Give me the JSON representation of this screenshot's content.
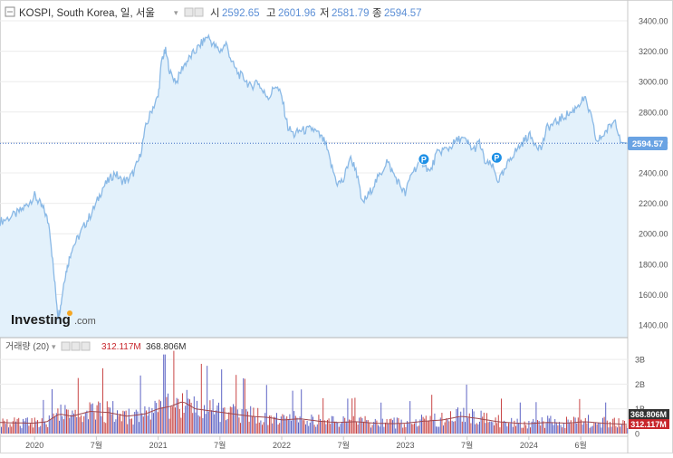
{
  "header": {
    "collapse_icon": "minus-square-icon",
    "symbol": "KOSPI, South Korea, 일, 서울",
    "open_label": "시",
    "open_value": "2592.65",
    "high_label": "고",
    "high_value": "2601.96",
    "low_label": "저",
    "low_value": "2581.79",
    "close_label": "종",
    "close_value": "2594.57"
  },
  "logo": {
    "brand": "Investing",
    "suffix": ".com"
  },
  "volume_header": {
    "label": "거래량 (20)",
    "value_red": "312.117M",
    "value_dark": "368.806M"
  },
  "colors": {
    "line": "#8ab9e6",
    "area": "#e3f1fb",
    "grid": "#ececec",
    "last_price_tag": "#6aa3e3",
    "vol_up": "#5d63c4",
    "vol_down": "#c94747",
    "vol_avg_line": "#a0464c",
    "vol_dark_tag": "#333333",
    "vol_red_tag": "#c8262c",
    "p_marker": "#1e90e6"
  },
  "chart_data": [
    {
      "type": "area",
      "title": "KOSPI, South Korea, 일, 서울",
      "y_ticks": [
        "3400.00",
        "3200.00",
        "3000.00",
        "2800.00",
        "2600.00",
        "2400.00",
        "2200.00",
        "2000.00",
        "1800.00",
        "1600.00",
        "1400.00"
      ],
      "ylim": [
        1400,
        3400
      ],
      "x_ticks": [
        "2020",
        "7월",
        "2021",
        "7월",
        "2022",
        "7월",
        "2023",
        "7월",
        "2024",
        "6월"
      ],
      "x_tick_values": [
        2020.0,
        2020.5,
        2021.0,
        2021.5,
        2022.0,
        2022.5,
        2023.0,
        2023.5,
        2024.0,
        2024.42
      ],
      "xlim": [
        2019.72,
        2024.8
      ],
      "last_price_label": "2594.57",
      "last_price": 2594.57,
      "markers": [
        {
          "x": 2023.15,
          "y": 2490,
          "label": "P"
        },
        {
          "x": 2023.74,
          "y": 2500,
          "label": "P"
        }
      ],
      "series": [
        {
          "x": [
            2019.72,
            2019.78,
            2019.85,
            2019.9,
            2019.95,
            2020.0,
            2020.04,
            2020.08,
            2020.12,
            2020.16,
            2020.19,
            2020.21,
            2020.24,
            2020.27,
            2020.3,
            2020.35,
            2020.4,
            2020.45,
            2020.5,
            2020.55,
            2020.6,
            2020.65,
            2020.7,
            2020.75,
            2020.8,
            2020.85,
            2020.9,
            2020.95,
            2021.0,
            2021.03,
            2021.06,
            2021.1,
            2021.15,
            2021.2,
            2021.25,
            2021.3,
            2021.35,
            2021.4,
            2021.45,
            2021.5,
            2021.55,
            2021.6,
            2021.65,
            2021.7,
            2021.75,
            2021.8,
            2021.85,
            2021.9,
            2021.95,
            2022.0,
            2022.05,
            2022.1,
            2022.15,
            2022.2,
            2022.25,
            2022.3,
            2022.35,
            2022.4,
            2022.45,
            2022.5,
            2022.55,
            2022.6,
            2022.65,
            2022.7,
            2022.75,
            2022.8,
            2022.85,
            2022.9,
            2022.95,
            2023.0,
            2023.05,
            2023.1,
            2023.15,
            2023.2,
            2023.25,
            2023.3,
            2023.35,
            2023.4,
            2023.45,
            2023.5,
            2023.55,
            2023.6,
            2023.65,
            2023.7,
            2023.75,
            2023.8,
            2023.85,
            2023.9,
            2023.95,
            2024.0,
            2024.05,
            2024.1,
            2024.15,
            2024.2,
            2024.25,
            2024.3,
            2024.35,
            2024.4,
            2024.45,
            2024.5,
            2024.55,
            2024.6,
            2024.65,
            2024.7,
            2024.75,
            2024.8
          ],
          "y": [
            2080,
            2100,
            2130,
            2160,
            2200,
            2250,
            2200,
            2150,
            2050,
            1700,
            1460,
            1520,
            1700,
            1800,
            1900,
            1970,
            2050,
            2120,
            2200,
            2300,
            2350,
            2400,
            2350,
            2350,
            2400,
            2500,
            2700,
            2820,
            2900,
            3150,
            3200,
            3050,
            3000,
            3100,
            3150,
            3200,
            3250,
            3300,
            3240,
            3200,
            3250,
            3120,
            3050,
            3020,
            2960,
            3010,
            2930,
            2900,
            2980,
            2900,
            2700,
            2650,
            2680,
            2680,
            2690,
            2650,
            2600,
            2450,
            2330,
            2350,
            2500,
            2430,
            2200,
            2250,
            2330,
            2390,
            2480,
            2400,
            2330,
            2260,
            2400,
            2450,
            2470,
            2400,
            2520,
            2550,
            2560,
            2600,
            2630,
            2600,
            2550,
            2600,
            2460,
            2450,
            2350,
            2400,
            2500,
            2550,
            2600,
            2650,
            2600,
            2560,
            2700,
            2720,
            2750,
            2780,
            2800,
            2850,
            2890,
            2780,
            2600,
            2650,
            2700,
            2750,
            2600,
            2594.57
          ]
        }
      ]
    },
    {
      "type": "bar",
      "title": "거래량 (20)",
      "y_ticks": [
        "3B",
        "2B",
        "1B",
        "0"
      ],
      "ylim": [
        0,
        3300000000
      ],
      "x_ticks": [
        "2020",
        "7월",
        "2021",
        "7월",
        "2022",
        "7월",
        "2023",
        "7월",
        "2024",
        "6월"
      ],
      "xlim": [
        2019.72,
        2024.8
      ],
      "value_labels": [
        "368.806M",
        "312.117M"
      ],
      "series": [
        {
          "name": "vol_avg",
          "x": [
            2019.72,
            2019.85,
            2020.0,
            2020.1,
            2020.2,
            2020.3,
            2020.45,
            2020.6,
            2020.75,
            2020.9,
            2021.0,
            2021.1,
            2021.2,
            2021.3,
            2021.45,
            2021.6,
            2021.75,
            2021.9,
            2022.0,
            2022.15,
            2022.3,
            2022.45,
            2022.6,
            2022.75,
            2022.9,
            2023.0,
            2023.15,
            2023.3,
            2023.45,
            2023.6,
            2023.75,
            2023.9,
            2024.0,
            2024.15,
            2024.3,
            2024.45,
            2024.6,
            2024.8
          ],
          "y": [
            450000000,
            430000000,
            420000000,
            480000000,
            800000000,
            700000000,
            900000000,
            850000000,
            700000000,
            800000000,
            1000000000,
            1100000000,
            1300000000,
            1000000000,
            900000000,
            800000000,
            700000000,
            650000000,
            550000000,
            600000000,
            500000000,
            450000000,
            480000000,
            420000000,
            400000000,
            420000000,
            500000000,
            550000000,
            700000000,
            600000000,
            480000000,
            420000000,
            400000000,
            450000000,
            420000000,
            480000000,
            420000000,
            368806000
          ]
        }
      ]
    }
  ]
}
